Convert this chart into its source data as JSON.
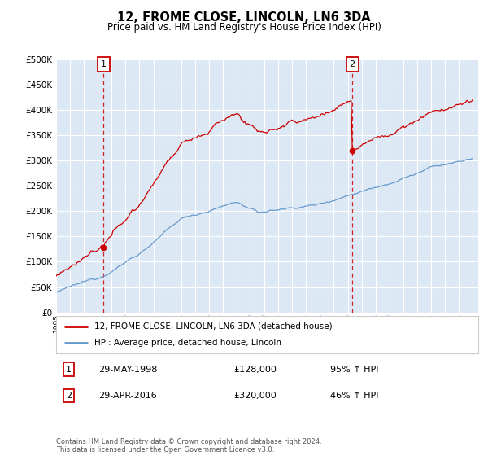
{
  "title": "12, FROME CLOSE, LINCOLN, LN6 3DA",
  "subtitle": "Price paid vs. HM Land Registry's House Price Index (HPI)",
  "legend_line1": "12, FROME CLOSE, LINCOLN, LN6 3DA (detached house)",
  "legend_line2": "HPI: Average price, detached house, Lincoln",
  "sale1_date": "29-MAY-1998",
  "sale1_price": "£128,000",
  "sale1_hpi": "95% ↑ HPI",
  "sale1_year": 1998.41,
  "sale1_value": 128000,
  "sale2_date": "29-APR-2016",
  "sale2_price": "£320,000",
  "sale2_hpi": "46% ↑ HPI",
  "sale2_year": 2016.33,
  "sale2_value": 320000,
  "hpi_color": "#6699cc",
  "price_color": "#cc0000",
  "vline_color": "#cc0000",
  "bg_color": "#dde8f5",
  "grid_color": "#ffffff",
  "footer": "Contains HM Land Registry data © Crown copyright and database right 2024.\nThis data is licensed under the Open Government Licence v3.0."
}
